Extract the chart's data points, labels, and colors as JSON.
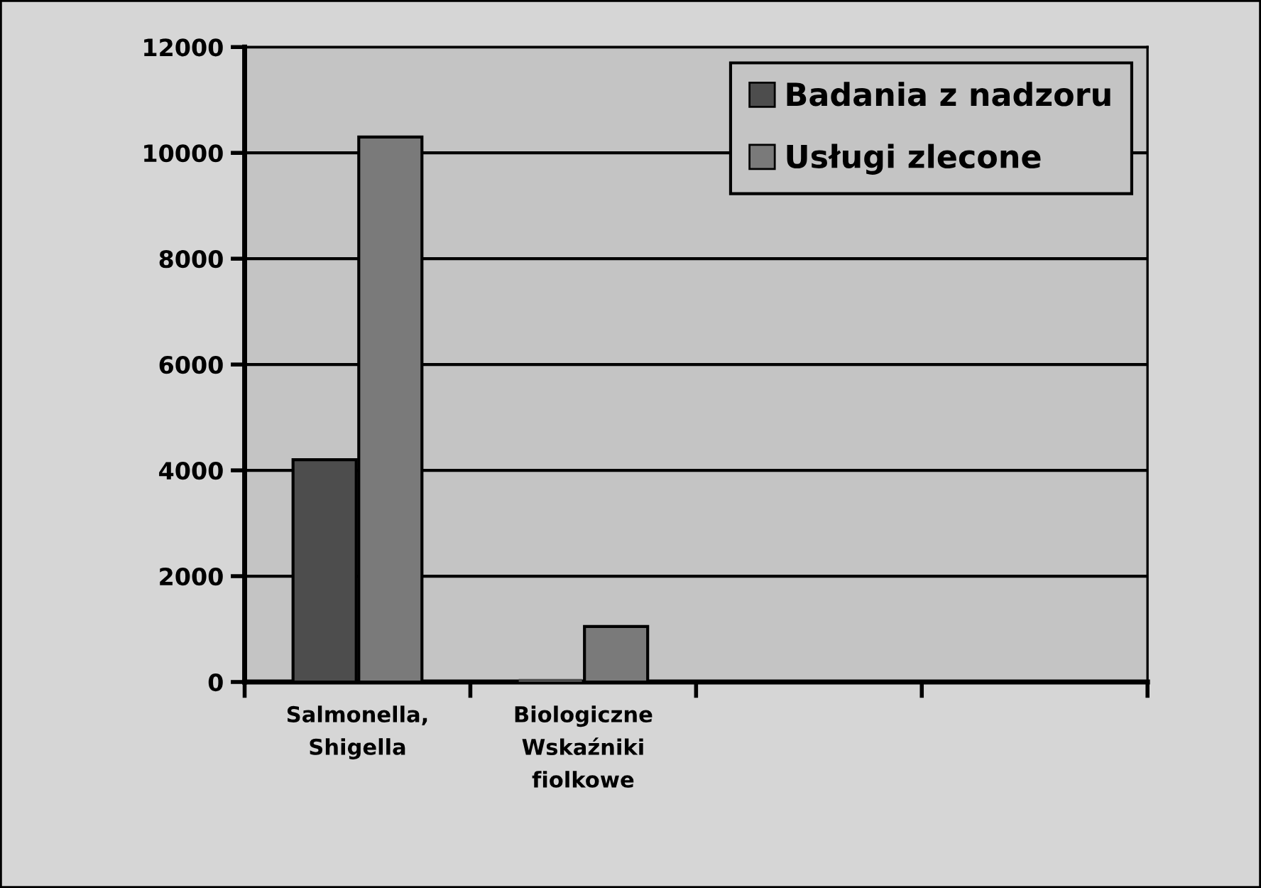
{
  "chart_data": {
    "type": "bar",
    "categories": [
      "Salmonella,\nShigella",
      "Biologiczne\nWskaźniki\nfiolkowe",
      null,
      null
    ],
    "series": [
      {
        "name": "Badania z nadzoru",
        "color": "#4d4d4d",
        "values": [
          4200,
          0,
          null,
          null
        ]
      },
      {
        "name": "Usługi zlecone",
        "color": "#7a7a7a",
        "values": [
          10300,
          1050,
          null,
          null
        ]
      }
    ],
    "ylim": [
      0,
      12000
    ],
    "yticks": [
      0,
      2000,
      4000,
      6000,
      8000,
      10000,
      12000
    ],
    "grid": "y",
    "legend": "top right"
  }
}
